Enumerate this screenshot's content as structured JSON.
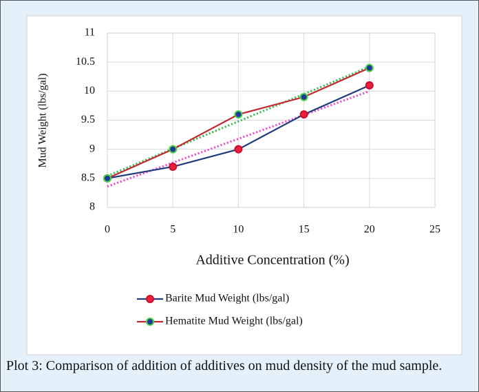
{
  "chart_data": {
    "type": "line",
    "x_label": "Additive Concentration (%)",
    "y_label": "Mud Weight (lbs/gal)",
    "x": [
      0,
      5,
      10,
      15,
      20
    ],
    "series": [
      {
        "name": "Barite Mud Weight (lbs/gal)",
        "color": "#1f3a7a",
        "marker_color": "#e8203c",
        "marker_edge": "#c8102e",
        "values": [
          8.5,
          8.7,
          9.0,
          9.6,
          10.1
        ],
        "trend": {
          "color": "#f23fd0",
          "x": [
            0,
            20
          ],
          "values": [
            8.36,
            10.0
          ]
        }
      },
      {
        "name": "Hematite Mud Weight (lbs/gal)",
        "color": "#c0282d",
        "marker_color": "#1f3a9a",
        "marker_edge": "#4ad24a",
        "values": [
          8.5,
          9.0,
          9.6,
          9.9,
          10.4
        ],
        "trend": {
          "color": "#2fb84a",
          "x": [
            0,
            20
          ],
          "values": [
            8.54,
            10.42
          ]
        }
      }
    ],
    "xlim": [
      0,
      25
    ],
    "xticks": [
      0,
      5,
      10,
      15,
      20,
      25
    ],
    "ylim": [
      8,
      11
    ],
    "yticks": [
      8,
      8.5,
      9,
      9.5,
      10,
      10.5,
      11
    ],
    "grid": true
  },
  "caption": "Plot 3: Comparison of addition of additives on mud density of the mud sample."
}
